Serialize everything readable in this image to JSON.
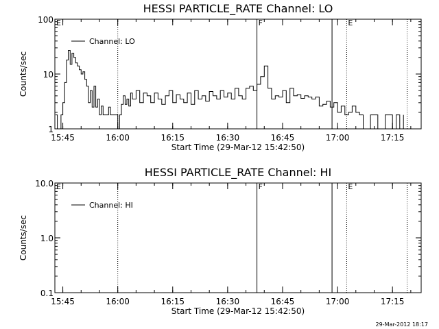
{
  "chart_data": [
    {
      "type": "line",
      "title": "HESSI PARTICLE_RATE Channel: LO",
      "xlabel": "Start Time (29-Mar-12 15:42:50)",
      "ylabel": "Counts/sec",
      "yscale": "log",
      "xlim": [
        "15:42:50",
        "17:22:50"
      ],
      "ylim": [
        1,
        100
      ],
      "x_ticks": [
        "15:45",
        "16:00",
        "16:15",
        "16:30",
        "16:45",
        "17:00",
        "17:15"
      ],
      "y_ticks": [
        "1",
        "10",
        "100"
      ],
      "legend": {
        "label": "Channel: LO",
        "placement": "top-left"
      },
      "markers": [
        {
          "time": "15:42:50",
          "label": "E",
          "style": "solid"
        },
        {
          "time": "16:00:00",
          "label": "",
          "style": "dotted"
        },
        {
          "time": "16:38:00",
          "label": "F",
          "style": "solid"
        },
        {
          "time": "16:58:30",
          "label": "",
          "style": "solid"
        },
        {
          "time": "17:02:30",
          "label": "E",
          "style": "dotted"
        },
        {
          "time": "17:19:00",
          "label": "",
          "style": "dotted"
        }
      ],
      "series": [
        {
          "name": "Channel: LO",
          "x": [
            "15:43:00",
            "15:43:30",
            "15:44:00",
            "15:44:30",
            "15:45:00",
            "15:45:30",
            "15:46:00",
            "15:46:30",
            "15:47:00",
            "15:47:30",
            "15:48:00",
            "15:48:30",
            "15:49:00",
            "15:49:30",
            "15:50:00",
            "15:50:30",
            "15:51:00",
            "15:51:30",
            "15:52:00",
            "15:52:30",
            "15:53:00",
            "15:53:30",
            "15:54:00",
            "15:54:30",
            "15:55:00",
            "15:55:30",
            "15:56:00",
            "15:56:30",
            "15:57:00",
            "15:57:30",
            "15:58:00",
            "15:58:30",
            "15:59:00",
            "15:59:30",
            "16:00:00",
            "16:00:30",
            "16:01:00",
            "16:01:30",
            "16:02:00",
            "16:02:30",
            "16:03:00",
            "16:03:30",
            "16:04:00",
            "16:05:00",
            "16:06:00",
            "16:07:00",
            "16:08:00",
            "16:09:00",
            "16:10:00",
            "16:11:00",
            "16:12:00",
            "16:13:00",
            "16:14:00",
            "16:15:00",
            "16:16:00",
            "16:17:00",
            "16:18:00",
            "16:19:00",
            "16:20:00",
            "16:21:00",
            "16:22:00",
            "16:23:00",
            "16:24:00",
            "16:25:00",
            "16:26:00",
            "16:27:00",
            "16:28:00",
            "16:29:00",
            "16:30:00",
            "16:31:00",
            "16:32:00",
            "16:33:00",
            "16:34:00",
            "16:35:00",
            "16:36:00",
            "16:37:00",
            "16:38:00",
            "16:39:00",
            "16:40:00",
            "16:41:00",
            "16:42:00",
            "16:43:00",
            "16:44:00",
            "16:45:00",
            "16:46:00",
            "16:47:00",
            "16:48:00",
            "16:49:00",
            "16:50:00",
            "16:51:00",
            "16:52:00",
            "16:53:00",
            "16:54:00",
            "16:55:00",
            "16:56:00",
            "16:57:00",
            "16:58:00",
            "16:59:00",
            "17:00:00",
            "17:01:00",
            "17:02:00",
            "17:03:00",
            "17:04:00",
            "17:05:00",
            "17:06:00",
            "17:07:00",
            "17:08:00",
            "17:09:00",
            "17:10:00",
            "17:11:00",
            "17:12:00",
            "17:13:00",
            "17:14:00",
            "17:15:00",
            "17:16:00",
            "17:17:00",
            "17:18:00"
          ],
          "y": [
            1.8,
            1.0,
            1.0,
            1.8,
            3.0,
            7.0,
            18.0,
            27.0,
            15.0,
            24.0,
            20.0,
            16.0,
            14.0,
            12.0,
            10.0,
            11.0,
            8.0,
            6.0,
            3.0,
            5.0,
            2.5,
            6.0,
            2.5,
            3.5,
            1.8,
            2.6,
            1.8,
            1.8,
            1.8,
            2.5,
            1.8,
            1.8,
            1.8,
            1.8,
            1.0,
            1.8,
            2.8,
            4.0,
            2.8,
            3.5,
            2.6,
            4.5,
            3.5,
            5.0,
            3.0,
            4.5,
            4.0,
            3.0,
            4.5,
            3.5,
            2.8,
            4.0,
            5.0,
            3.0,
            4.2,
            3.5,
            3.0,
            4.5,
            2.8,
            5.0,
            3.5,
            4.0,
            3.2,
            4.8,
            4.0,
            3.5,
            5.0,
            3.8,
            4.5,
            3.5,
            5.5,
            4.0,
            3.5,
            5.5,
            6.0,
            5.0,
            6.5,
            9.0,
            14.0,
            5.5,
            3.5,
            4.0,
            3.8,
            5.0,
            3.0,
            5.5,
            4.0,
            4.2,
            3.6,
            4.0,
            3.8,
            3.5,
            3.8,
            2.6,
            2.8,
            3.2,
            2.5,
            3.0,
            2.0,
            2.6,
            1.8,
            2.0,
            2.6,
            2.0,
            1.8,
            1.0,
            1.0,
            1.8,
            1.8,
            1.0,
            1.0,
            1.8,
            1.8,
            1.0,
            1.8,
            1.0,
            1.8
          ]
        }
      ]
    },
    {
      "type": "line",
      "title": "HESSI PARTICLE_RATE Channel: HI",
      "xlabel": "Start Time (29-Mar-12 15:42:50)",
      "ylabel": "Counts/sec",
      "yscale": "log",
      "xlim": [
        "15:42:50",
        "17:22:50"
      ],
      "ylim": [
        0.1,
        10.0
      ],
      "x_ticks": [
        "15:45",
        "16:00",
        "16:15",
        "16:30",
        "16:45",
        "17:00",
        "17:15"
      ],
      "y_ticks": [
        "0.1",
        "1.0",
        "10.0"
      ],
      "legend": {
        "label": "Channel: HI",
        "placement": "top-left"
      },
      "markers": [
        {
          "time": "15:42:50",
          "label": "E",
          "style": "solid"
        },
        {
          "time": "16:00:00",
          "label": "",
          "style": "dotted"
        },
        {
          "time": "16:38:00",
          "label": "F",
          "style": "solid"
        },
        {
          "time": "16:58:30",
          "label": "",
          "style": "solid"
        },
        {
          "time": "17:02:30",
          "label": "E",
          "style": "dotted"
        },
        {
          "time": "17:19:00",
          "label": "",
          "style": "dotted"
        }
      ],
      "series": [
        {
          "name": "Channel: HI",
          "x": [],
          "y": []
        }
      ]
    }
  ],
  "footer": {
    "timestamp": "29-Mar-2012 18:17"
  }
}
